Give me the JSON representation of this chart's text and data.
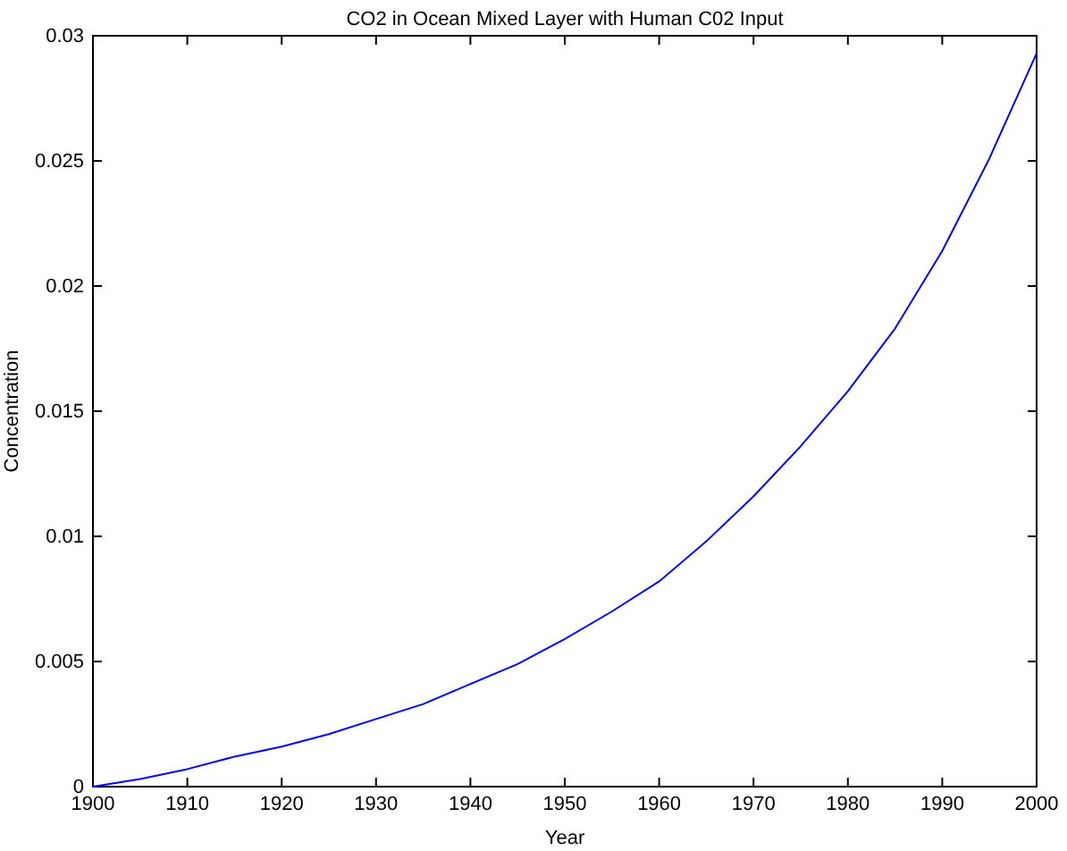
{
  "chart_data": {
    "type": "line",
    "title": "CO2 in Ocean Mixed Layer with Human C02 Input",
    "xlabel": "Year",
    "ylabel": "Concentration",
    "x": [
      1900,
      1905,
      1910,
      1915,
      1920,
      1925,
      1930,
      1935,
      1940,
      1945,
      1950,
      1955,
      1960,
      1965,
      1970,
      1975,
      1980,
      1985,
      1990,
      1995,
      2000
    ],
    "series": [
      {
        "color": "#0000ff",
        "values": [
          0,
          0.0003,
          0.0007,
          0.0012,
          0.0016,
          0.0021,
          0.0027,
          0.0033,
          0.0041,
          0.0049,
          0.0059,
          0.007,
          0.0082,
          0.0098,
          0.0116,
          0.0136,
          0.0158,
          0.0183,
          0.0214,
          0.0251,
          0.0293
        ]
      }
    ],
    "xlim": [
      1900,
      2000
    ],
    "xticks": [
      1900,
      1910,
      1920,
      1930,
      1940,
      1950,
      1960,
      1970,
      1980,
      1990,
      2000
    ],
    "ylim": [
      0,
      0.03
    ],
    "yticks": [
      0,
      0.005,
      0.01,
      0.015,
      0.02,
      0.025,
      0.03
    ],
    "grid": false,
    "marker": "none",
    "line_style": "solid"
  }
}
